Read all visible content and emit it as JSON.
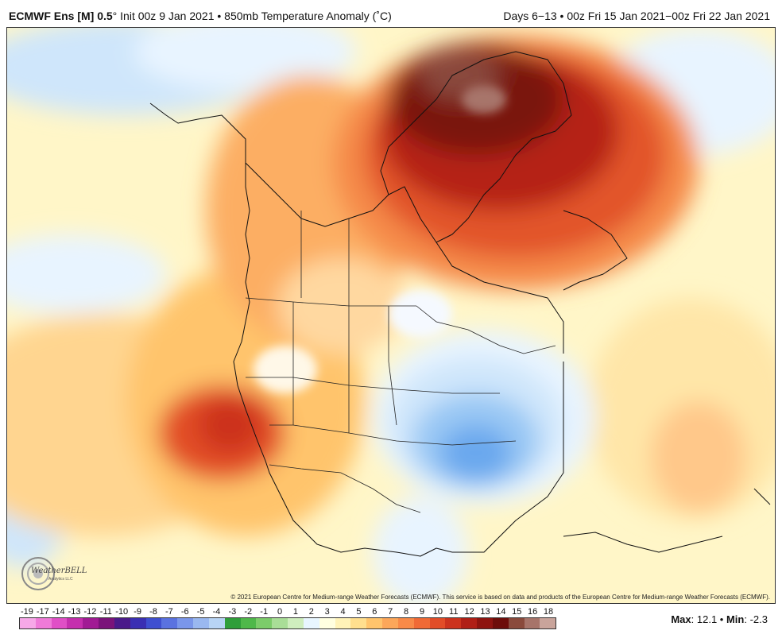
{
  "header": {
    "model": "ECMWF Ens [M] 0.5",
    "degree": "°",
    "init": "Init 00z 9 Jan 2021",
    "bullet": "•",
    "field": "850mb Temperature Anomaly (˚C)",
    "valid": "Days 6−13 • 00z Fri 15 Jan 2021−00z Fri 22 Jan 2021"
  },
  "copyright": "© 2021 European Centre for Medium-range Weather Forecasts (ECMWF). This service is based on data and products of the European Centre for Medium-range Weather Forecasts (ECMWF).",
  "logo": {
    "text": "WeatherBELL",
    "sub": "Analytics LLC"
  },
  "colorbar": {
    "ticks": [
      "-19",
      "-17",
      "-14",
      "-13",
      "-12",
      "-11",
      "-10",
      "-9",
      "-8",
      "-7",
      "-6",
      "-5",
      "-4",
      "-3",
      "-2",
      "-1",
      "0",
      "1",
      "2",
      "3",
      "4",
      "5",
      "6",
      "7",
      "8",
      "9",
      "10",
      "11",
      "12",
      "13",
      "14",
      "15",
      "16",
      "18"
    ],
    "colors": [
      "#f7a8e8",
      "#ef7ad8",
      "#e04fc6",
      "#c52fae",
      "#a11b94",
      "#7b137a",
      "#4a1a8a",
      "#3a2fb3",
      "#3f4fd0",
      "#5a72e0",
      "#7a96ea",
      "#9ab8f0",
      "#b8d4f5",
      "#2f9e3a",
      "#4fb84a",
      "#7ccc6a",
      "#a9de97",
      "#cfeebe",
      "#e8f6ff",
      "#ffffe0",
      "#fff3b8",
      "#ffdf8e",
      "#ffc46c",
      "#fca75a",
      "#f88a48",
      "#f06a36",
      "#e24d28",
      "#cc331e",
      "#b01f17",
      "#8e1410",
      "#6d0d0a",
      "#8a4a3c",
      "#a7746a",
      "#c9a49b"
    ],
    "stats_max_label": "Max",
    "stats_max": "12.1",
    "stats_min_label": "Min",
    "stats_min": "-2.3"
  }
}
